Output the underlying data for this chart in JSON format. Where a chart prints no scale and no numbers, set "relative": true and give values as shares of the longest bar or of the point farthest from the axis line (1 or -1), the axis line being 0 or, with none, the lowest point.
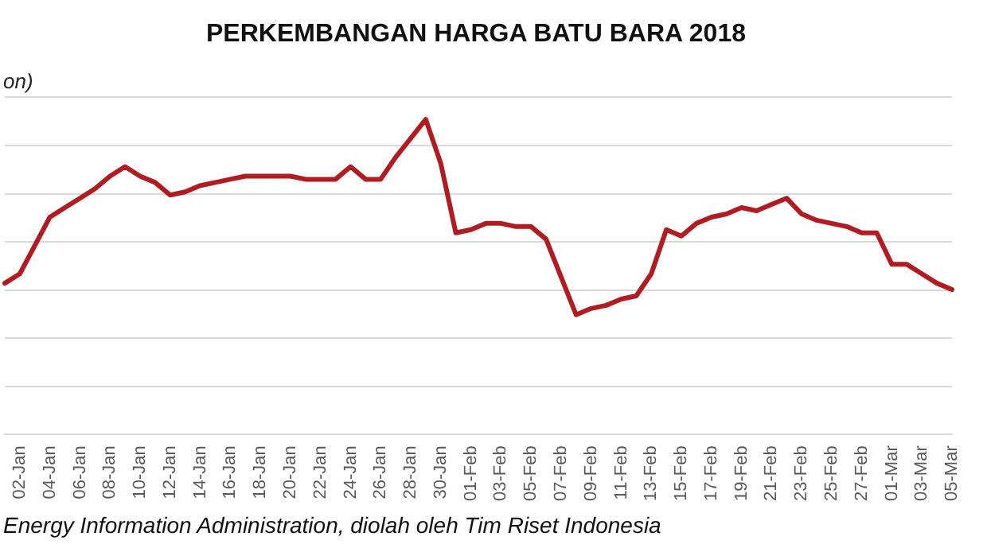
{
  "chart_data": {
    "type": "line",
    "title": "PERKEMBANGAN HARGA BATU BARA 2018",
    "ylabel": "on)",
    "relative": true,
    "grid": "y",
    "legend": false,
    "marker": "none",
    "line_style": "solid",
    "categories": [
      null,
      "02-Jan",
      null,
      "04-Jan",
      null,
      "06-Jan",
      null,
      "08-Jan",
      null,
      "10-Jan",
      null,
      "12-Jan",
      null,
      "14-Jan",
      null,
      "16-Jan",
      null,
      "18-Jan",
      null,
      "20-Jan",
      null,
      "22-Jan",
      null,
      "24-Jan",
      null,
      "26-Jan",
      null,
      "28-Jan",
      null,
      "30-Jan",
      null,
      "01-Feb",
      null,
      "03-Feb",
      null,
      "05-Feb",
      null,
      "07-Feb",
      null,
      "09-Feb",
      null,
      "11-Feb",
      null,
      "13-Feb",
      null,
      "15-Feb",
      null,
      "17-Feb",
      null,
      "19-Feb",
      null,
      "21-Feb",
      null,
      "23-Feb",
      null,
      "25-Feb",
      null,
      "27-Feb",
      null,
      "01-Mar",
      null,
      "03-Mar",
      null,
      "05-Mar"
    ],
    "series": [
      {
        "color": "#b01c22",
        "values": [
          0.48,
          0.51,
          0.6,
          0.69,
          0.72,
          0.75,
          0.78,
          0.82,
          0.85,
          0.82,
          0.8,
          0.76,
          0.77,
          0.79,
          0.8,
          0.81,
          0.82,
          0.82,
          0.82,
          0.82,
          0.81,
          0.81,
          0.81,
          0.85,
          0.81,
          0.81,
          0.88,
          0.94,
          1,
          0.86,
          0.64,
          0.65,
          0.67,
          0.67,
          0.66,
          0.66,
          0.62,
          0.5,
          0.38,
          0.4,
          0.41,
          0.43,
          0.44,
          0.51,
          0.65,
          0.63,
          0.67,
          0.69,
          0.7,
          0.72,
          0.71,
          0.73,
          0.75,
          0.7,
          0.68,
          0.67,
          0.66,
          0.64,
          0.64,
          0.54,
          0.54,
          0.51,
          0.48,
          0.46
        ]
      }
    ],
    "annotations": [
      "Energy Information Administration, diolah oleh Tim Riset Indonesia"
    ]
  }
}
